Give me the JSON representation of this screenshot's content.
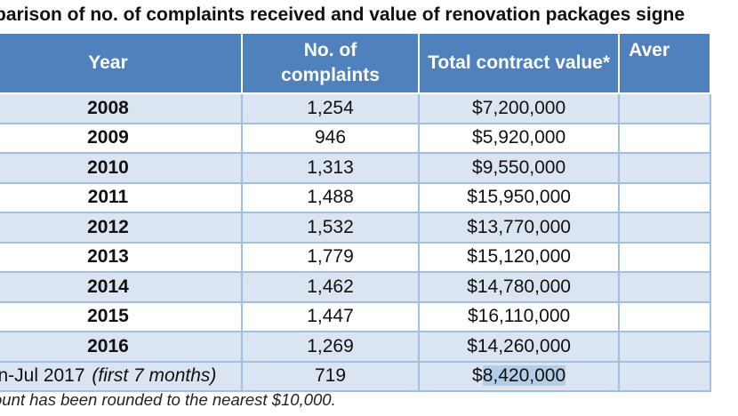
{
  "title": "parison of no. of complaints received and value of renovation packages signe",
  "columns": {
    "year": "Year",
    "complaints": "No. of complaints",
    "value": "Total contract value*",
    "average": "Aver"
  },
  "rows": [
    {
      "year": "2008",
      "complaints": "1,254",
      "value": "$7,200,000"
    },
    {
      "year": "2009",
      "complaints": "946",
      "value": "$5,920,000"
    },
    {
      "year": "2010",
      "complaints": "1,313",
      "value": "$9,550,000"
    },
    {
      "year": "2011",
      "complaints": "1,488",
      "value": "$15,950,000"
    },
    {
      "year": "2012",
      "complaints": "1,532",
      "value": "$13,770,000"
    },
    {
      "year": "2013",
      "complaints": "1,779",
      "value": "$15,120,000"
    },
    {
      "year": "2014",
      "complaints": "1,462",
      "value": "$14,780,000"
    },
    {
      "year": "2015",
      "complaints": "1,447",
      "value": "$16,110,000"
    },
    {
      "year": "2016",
      "complaints": "1,269",
      "value": "$14,260,000"
    }
  ],
  "last_row": {
    "year": "n-Jul 2017",
    "note": "(first 7 months)",
    "complaints": "719",
    "value_prefix": "$",
    "value_selected": "8,420,000"
  },
  "footnote": "ount has been rounded to the nearest $10,000."
}
